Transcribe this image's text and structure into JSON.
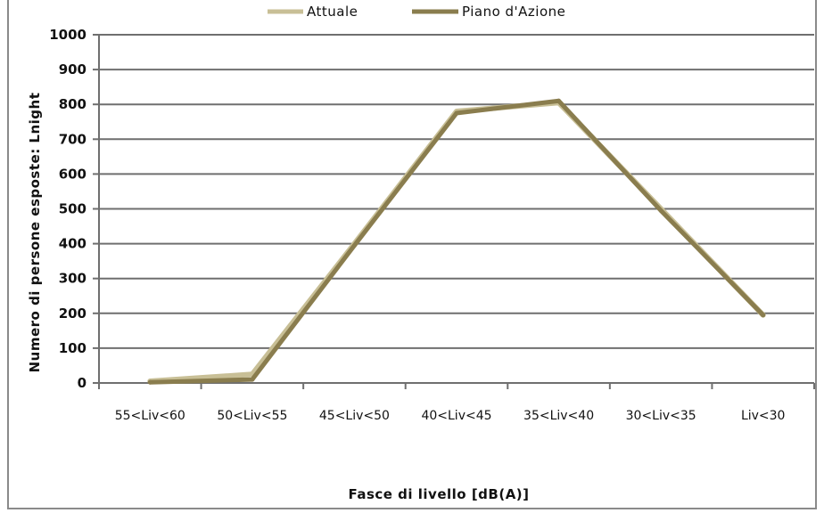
{
  "chart_data": {
    "type": "line",
    "categories": [
      "55<Liv<60",
      "50<Liv<55",
      "45<Liv<50",
      "40<Liv<45",
      "35<Liv<40",
      "30<Liv<35",
      "Liv<30"
    ],
    "series": [
      {
        "name": "Attuale",
        "values": [
          5,
          25,
          400,
          780,
          805,
          500,
          195
        ],
        "color": "#c8bf96"
      },
      {
        "name": "Piano d'Azione",
        "values": [
          2,
          10,
          395,
          775,
          810,
          495,
          195
        ],
        "color": "#8a7d4e"
      }
    ],
    "ylabel": "Numero di persone esposte: Lnight",
    "xlabel": "Fasce di livello [dB(A)]",
    "ylim": [
      0,
      1000
    ],
    "yticks": [
      0,
      100,
      200,
      300,
      400,
      500,
      600,
      700,
      800,
      900,
      1000
    ],
    "grid": true,
    "legend": "top"
  }
}
